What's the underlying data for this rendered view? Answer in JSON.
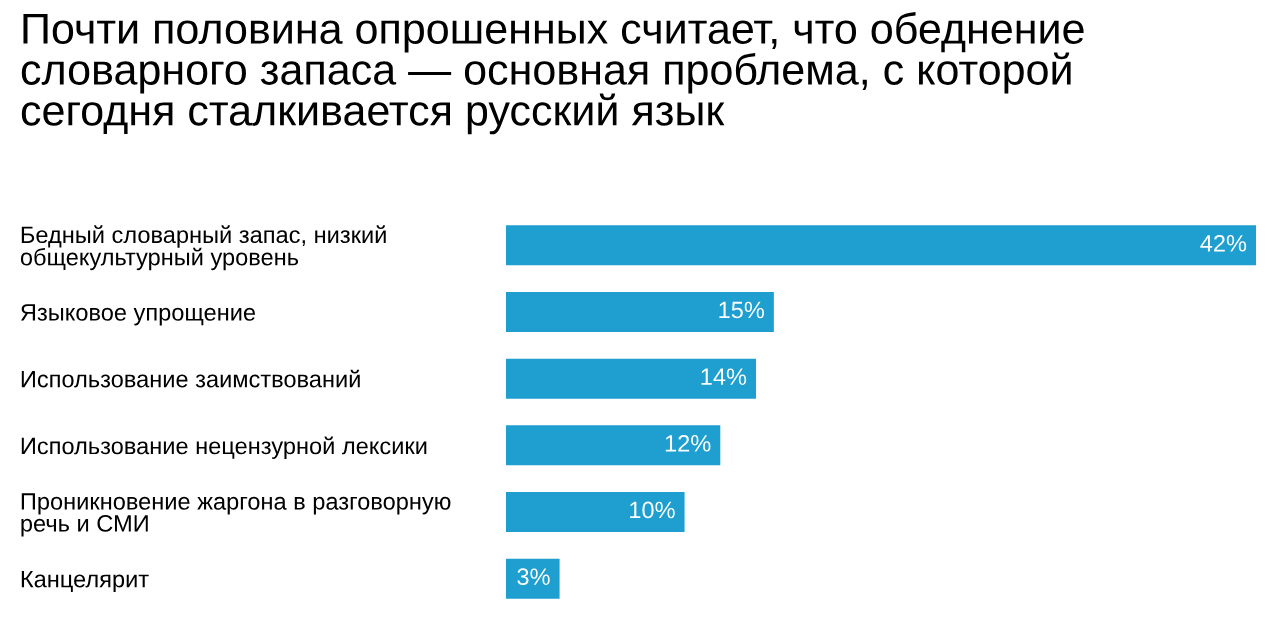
{
  "chart_data": {
    "type": "bar",
    "orientation": "horizontal",
    "title": "Почти половина опрошенных считает, что обеднение\nсловарного запаса — основная проблема, с которой\nсегодня сталкивается русский язык",
    "categories": [
      "Бедный словарный запас, низкий\nобщекультурный уровень",
      "Языковое упрощение",
      "Использование заимствований",
      "Использование нецензурной лексики",
      "Проникновение жаргона в разговорную\nречь и СМИ",
      "Канцелярит"
    ],
    "values": [
      42,
      15,
      14,
      12,
      10,
      3
    ],
    "value_labels": [
      "42%",
      "15%",
      "14%",
      "12%",
      "10%",
      "3%"
    ],
    "color": "#1e9fd0",
    "grid": false,
    "legend": false
  }
}
